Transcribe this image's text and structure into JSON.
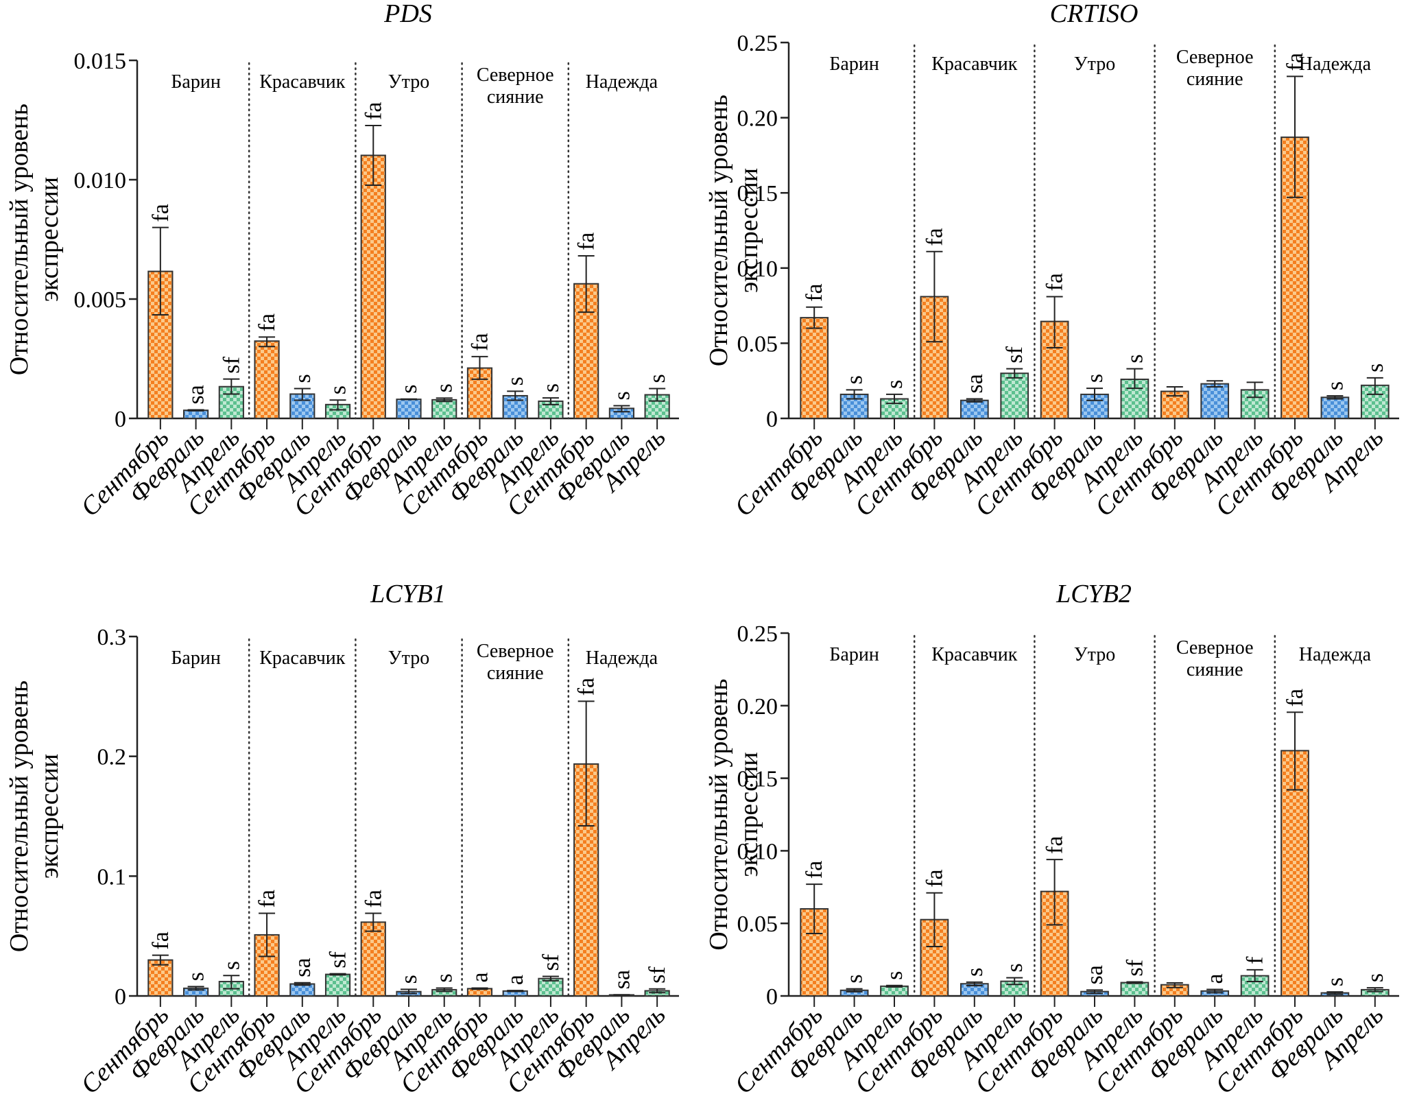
{
  "colors": {
    "september": "#f47f20",
    "september_light": "#fbc98a",
    "february": "#4a90d9",
    "february_light": "#9cc7f0",
    "april": "#5cc08f",
    "april_light": "#bfe8d2",
    "axis": "#222222"
  },
  "chart_data": [
    {
      "type": "bar",
      "title": "PDS",
      "ylabel": "Относительный уровень экспрессии",
      "xlabel": "",
      "ylim": [
        0,
        0.015
      ],
      "yticks": [
        "0",
        "0.005",
        "0.010",
        "0.015"
      ],
      "ytick_values": [
        0,
        0.005,
        0.01,
        0.015
      ],
      "groups": [
        "Барин",
        "Красавчик",
        "Утро",
        "Северное сияние",
        "Надежда"
      ],
      "categories": [
        "Сентябрь",
        "Февраль",
        "Апрель"
      ],
      "series": [
        {
          "group": "Барин",
          "values": [
            0.00616,
            0.00034,
            0.00133
          ],
          "err_hi": [
            0.008,
            0.00036,
            0.00165
          ],
          "err_lo": [
            0.00434,
            0.00032,
            0.00102
          ],
          "labels": [
            "fa",
            "sa",
            "sf"
          ]
        },
        {
          "group": "Красавчик",
          "values": [
            0.00324,
            0.00102,
            0.00058
          ],
          "err_hi": [
            0.00341,
            0.00125,
            0.00077
          ],
          "err_lo": [
            0.00301,
            0.00076,
            0.00036
          ],
          "labels": [
            "fa",
            "s",
            "s"
          ]
        },
        {
          "group": "Утро",
          "values": [
            0.01102,
            0.0008,
            0.00078
          ],
          "err_hi": [
            0.01227,
            0.00081,
            0.00085
          ],
          "err_lo": [
            0.00977,
            0.00079,
            0.00071
          ],
          "labels": [
            "fa",
            "s",
            "s"
          ]
        },
        {
          "group": "Северное сияние",
          "values": [
            0.00211,
            0.00095,
            0.00072
          ],
          "err_hi": [
            0.00259,
            0.00114,
            0.00086
          ],
          "err_lo": [
            0.00164,
            0.00076,
            0.00058
          ],
          "labels": [
            "fa",
            "s",
            "s"
          ]
        },
        {
          "group": "Надежда",
          "values": [
            0.00564,
            0.00042,
            0.00099
          ],
          "err_hi": [
            0.00681,
            0.00053,
            0.00125
          ],
          "err_lo": [
            0.00445,
            0.00028,
            0.00073
          ],
          "labels": [
            "fa",
            "s",
            "s"
          ]
        }
      ]
    },
    {
      "type": "bar",
      "title": "CRTISO",
      "ylabel": "Относительный уровень экспрессии",
      "xlabel": "",
      "ylim": [
        0,
        0.25
      ],
      "yticks": [
        "0",
        "0.05",
        "0.10",
        "0.15",
        "0.20",
        "0.25"
      ],
      "ytick_values": [
        0,
        0.05,
        0.1,
        0.15,
        0.2,
        0.25
      ],
      "groups": [
        "Барин",
        "Красавчик",
        "Утро",
        "Северное сияние",
        "Надежда"
      ],
      "categories": [
        "Сентябрь",
        "Февраль",
        "Апрель"
      ],
      "series": [
        {
          "group": "Барин",
          "values": [
            0.067,
            0.016,
            0.013
          ],
          "err_hi": [
            0.074,
            0.019,
            0.016
          ],
          "err_lo": [
            0.06,
            0.013,
            0.01
          ],
          "labels": [
            "fa",
            "s",
            "s"
          ]
        },
        {
          "group": "Красавчик",
          "values": [
            0.081,
            0.012,
            0.03
          ],
          "err_hi": [
            0.111,
            0.013,
            0.033
          ],
          "err_lo": [
            0.051,
            0.011,
            0.027
          ],
          "labels": [
            "fa",
            "sa",
            "sf"
          ]
        },
        {
          "group": "Утро",
          "values": [
            0.0645,
            0.016,
            0.026
          ],
          "err_hi": [
            0.081,
            0.02,
            0.033
          ],
          "err_lo": [
            0.047,
            0.012,
            0.02
          ],
          "labels": [
            "fa",
            "s",
            "s"
          ]
        },
        {
          "group": "Северное сияние",
          "values": [
            0.018,
            0.023,
            0.019
          ],
          "err_hi": [
            0.021,
            0.025,
            0.024
          ],
          "err_lo": [
            0.015,
            0.021,
            0.014
          ],
          "labels": [
            "",
            "",
            ""
          ]
        },
        {
          "group": "Надежда",
          "values": [
            0.187,
            0.014,
            0.022
          ],
          "err_hi": [
            0.2275,
            0.015,
            0.027
          ],
          "err_lo": [
            0.147,
            0.013,
            0.016
          ],
          "labels": [
            "fa",
            "s",
            "s"
          ]
        }
      ]
    },
    {
      "type": "bar",
      "title": "LCYB1",
      "ylabel": "Относительный уровень экспрессии",
      "xlabel": "",
      "ylim": [
        0,
        0.3
      ],
      "yticks": [
        "0",
        "0.1",
        "0.2",
        "0.3"
      ],
      "ytick_values": [
        0,
        0.1,
        0.2,
        0.3
      ],
      "groups": [
        "Барин",
        "Красавчик",
        "Утро",
        "Северное сияние",
        "Надежда"
      ],
      "categories": [
        "Сентябрь",
        "Февраль",
        "Апрель"
      ],
      "series": [
        {
          "group": "Барин",
          "values": [
            0.03,
            0.0064,
            0.012
          ],
          "err_hi": [
            0.034,
            0.0078,
            0.017
          ],
          "err_lo": [
            0.026,
            0.005,
            0.006
          ],
          "labels": [
            "fa",
            "s",
            "s"
          ]
        },
        {
          "group": "Красавчик",
          "values": [
            0.051,
            0.01,
            0.018
          ],
          "err_hi": [
            0.069,
            0.011,
            0.0185
          ],
          "err_lo": [
            0.033,
            0.009,
            0.0175
          ],
          "labels": [
            "fa",
            "sa",
            "sf"
          ]
        },
        {
          "group": "Утро",
          "values": [
            0.0616,
            0.0036,
            0.0052
          ],
          "err_hi": [
            0.069,
            0.0055,
            0.0066
          ],
          "err_lo": [
            0.054,
            0.002,
            0.0038
          ],
          "labels": [
            "fa",
            "s",
            "s"
          ]
        },
        {
          "group": "Северное сияние",
          "values": [
            0.0061,
            0.0041,
            0.0145
          ],
          "err_hi": [
            0.0066,
            0.0045,
            0.0163
          ],
          "err_lo": [
            0.0056,
            0.0037,
            0.0127
          ],
          "labels": [
            "a",
            "a",
            "sf"
          ]
        },
        {
          "group": "Надежда",
          "values": [
            0.1936,
            0.0009,
            0.0043
          ],
          "err_hi": [
            0.246,
            0.001,
            0.0059
          ],
          "err_lo": [
            0.142,
            0.0008,
            0.0027
          ],
          "labels": [
            "fa",
            "sa",
            "sf"
          ]
        }
      ]
    },
    {
      "type": "bar",
      "title": "LCYB2",
      "ylabel": "Относительный уровень экспрессии",
      "xlabel": "",
      "ylim": [
        0,
        0.25
      ],
      "yticks": [
        "0",
        "0.05",
        "0.10",
        "0.15",
        "0.20",
        "0.25"
      ],
      "ytick_values": [
        0,
        0.05,
        0.1,
        0.15,
        0.2,
        0.25
      ],
      "groups": [
        "Барин",
        "Красавчик",
        "Утро",
        "Северное сияние",
        "Надежда"
      ],
      "categories": [
        "Сентябрь",
        "Февраль",
        "Апрель"
      ],
      "series": [
        {
          "group": "Барин",
          "values": [
            0.06,
            0.0039,
            0.0067
          ],
          "err_hi": [
            0.077,
            0.0049,
            0.0072
          ],
          "err_lo": [
            0.043,
            0.0029,
            0.0062
          ],
          "labels": [
            "fa",
            "s",
            "s"
          ]
        },
        {
          "group": "Красавчик",
          "values": [
            0.0526,
            0.0084,
            0.0101
          ],
          "err_hi": [
            0.071,
            0.0095,
            0.0125
          ],
          "err_lo": [
            0.034,
            0.0071,
            0.0079
          ],
          "labels": [
            "fa",
            "s",
            "s"
          ]
        },
        {
          "group": "Утро",
          "values": [
            0.072,
            0.003,
            0.0092
          ],
          "err_hi": [
            0.094,
            0.0041,
            0.0097
          ],
          "err_lo": [
            0.049,
            0.0017,
            0.0087
          ],
          "labels": [
            "fa",
            "sa",
            "sf"
          ]
        },
        {
          "group": "Северное сияние",
          "values": [
            0.0077,
            0.0034,
            0.0139
          ],
          "err_hi": [
            0.009,
            0.0045,
            0.018
          ],
          "err_lo": [
            0.0058,
            0.0022,
            0.0099
          ],
          "labels": [
            "",
            "a",
            "f"
          ]
        },
        {
          "group": "Надежда",
          "values": [
            0.169,
            0.0021,
            0.0043
          ],
          "err_hi": [
            0.1955,
            0.0028,
            0.0056
          ],
          "err_lo": [
            0.142,
            0.0011,
            0.003
          ],
          "labels": [
            "fa",
            "s",
            "s"
          ]
        }
      ]
    }
  ]
}
